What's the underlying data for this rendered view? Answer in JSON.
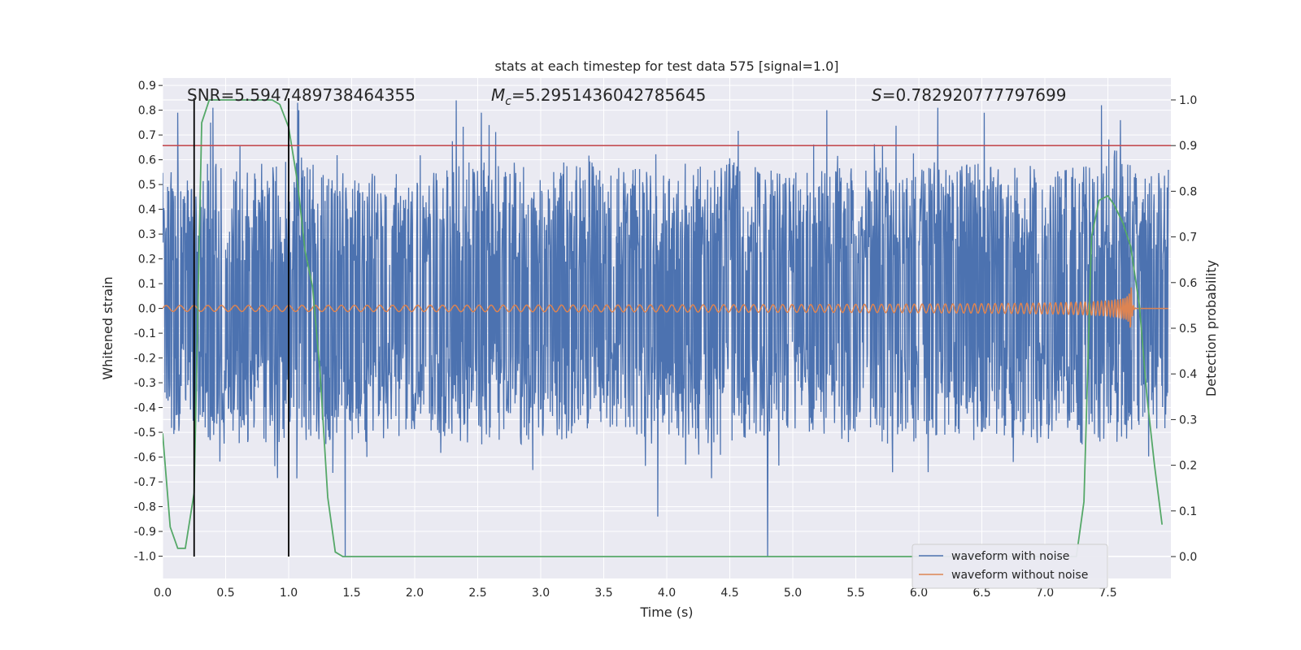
{
  "chart_data": {
    "type": "line",
    "title": "stats at each timestep for test data 575 [signal=1.0]",
    "xlabel": "Time (s)",
    "ylabel": "Whitened strain",
    "y2label": "Detection probability",
    "xlim": [
      0.0,
      8.0
    ],
    "ylim": [
      -1.09,
      0.93
    ],
    "y2lim": [
      -0.048,
      1.048
    ],
    "xticks": [
      "0.0",
      "0.5",
      "1.0",
      "1.5",
      "2.0",
      "2.5",
      "3.0",
      "3.5",
      "4.0",
      "4.5",
      "5.0",
      "5.5",
      "6.0",
      "6.5",
      "7.0",
      "7.5"
    ],
    "yticks": [
      "0.9",
      "0.8",
      "0.7",
      "0.6",
      "0.5",
      "0.4",
      "0.3",
      "0.2",
      "0.1",
      "0.0",
      "-0.1",
      "-0.2",
      "-0.3",
      "-0.4",
      "-0.5",
      "-0.6",
      "-0.7",
      "-0.8",
      "-0.9",
      "-1.0"
    ],
    "y2ticks": [
      "0.0",
      "0.1",
      "0.2",
      "0.3",
      "0.4",
      "0.5",
      "0.6",
      "0.7",
      "0.8",
      "0.9",
      "1.0"
    ],
    "grid": true,
    "legend_position": "lower-right",
    "colors": {
      "noise": "#4c72b0",
      "clean": "#dd8452",
      "prob": "#55a868",
      "threshold": "#c44e52",
      "marker": "#000000",
      "background": "#eaeaf2",
      "grid": "#ffffff"
    },
    "annotations": {
      "snr_label": "SNR=5.5947489738464355",
      "mc_symbol": "M",
      "mc_sub": "c",
      "mc_value": "=5.2951436042785645",
      "s_symbol": "S",
      "s_value": "=0.782920777797699"
    },
    "series": [
      {
        "name": "waveform with noise",
        "envelope": {
          "t": [
            0.0,
            0.5,
            1.0,
            1.5,
            2.0,
            2.5,
            3.0,
            3.5,
            4.0,
            4.5,
            5.0,
            5.5,
            6.0,
            6.5,
            7.0,
            7.5,
            8.0
          ],
          "upper_typical": [
            0.55,
            0.6,
            0.6,
            0.55,
            0.55,
            0.6,
            0.6,
            0.6,
            0.55,
            0.6,
            0.55,
            0.6,
            0.6,
            0.6,
            0.55,
            0.6,
            0.55
          ],
          "lower_typical": [
            -0.5,
            -0.55,
            -0.55,
            -0.55,
            -0.5,
            -0.55,
            -0.55,
            -0.5,
            -0.55,
            -0.55,
            -0.5,
            -0.55,
            -0.55,
            -0.5,
            -0.55,
            -0.55,
            -0.5
          ],
          "peaks": [
            [
              0.12,
              0.79
            ],
            [
              0.38,
              0.75
            ],
            [
              0.4,
              0.81
            ],
            [
              1.07,
              0.83
            ],
            [
              1.08,
              0.8
            ],
            [
              1.45,
              -1.0
            ],
            [
              2.33,
              0.84
            ],
            [
              2.53,
              0.79
            ],
            [
              3.93,
              -0.84
            ],
            [
              4.8,
              -1.0
            ],
            [
              5.27,
              0.8
            ],
            [
              6.15,
              0.81
            ],
            [
              6.52,
              0.79
            ],
            [
              7.45,
              0.82
            ],
            [
              7.6,
              0.76
            ]
          ]
        }
      },
      {
        "name": "waveform without noise",
        "chirp": {
          "t_start": 0.0,
          "t_merger": 7.68,
          "amp_start": 0.012,
          "amp_peak": 0.17,
          "f_start": 9.0,
          "f_end": 60.0
        }
      },
      {
        "name": "detection probability",
        "axis": "right",
        "x": [
          0.0,
          0.06,
          0.12,
          0.18,
          0.25,
          0.31,
          0.37,
          0.43,
          0.5,
          0.62,
          0.75,
          0.87,
          0.93,
          1.0,
          1.07,
          1.13,
          1.19,
          1.25,
          1.31,
          1.37,
          1.43,
          1.5,
          1.87,
          2.5,
          3.5,
          4.5,
          5.5,
          6.5,
          7.0,
          7.25,
          7.31,
          7.37,
          7.43,
          7.5,
          7.55,
          7.62,
          7.68,
          7.75,
          7.81,
          7.87,
          7.93
        ],
        "values": [
          0.27,
          0.065,
          0.018,
          0.018,
          0.14,
          0.95,
          1.0,
          1.0,
          1.0,
          1.0,
          1.0,
          1.0,
          0.99,
          0.94,
          0.82,
          0.67,
          0.59,
          0.4,
          0.13,
          0.01,
          0.0,
          0.0,
          0.0,
          0.0,
          0.0,
          0.0,
          0.0,
          0.0,
          0.0,
          0.0,
          0.12,
          0.7,
          0.78,
          0.79,
          0.77,
          0.73,
          0.68,
          0.55,
          0.35,
          0.2,
          0.07
        ]
      }
    ],
    "threshold_line": {
      "y": 0.9,
      "axis": "right"
    },
    "marker_lines": [
      0.25,
      1.0
    ]
  }
}
